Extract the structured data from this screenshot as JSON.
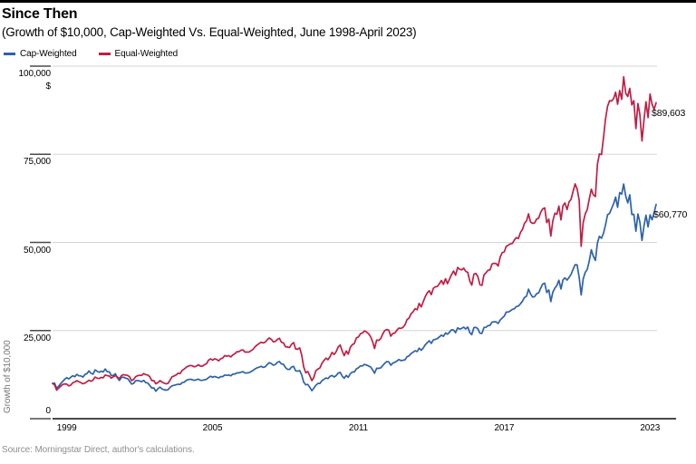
{
  "header": {
    "title": "Since Then",
    "subtitle": "(Growth of $10,000, Cap-Weighted Vs. Equal-Weighted, June 1998-April 2023)"
  },
  "footer": {
    "source": "Source: Morningstar Direct, author's calculations."
  },
  "colors": {
    "cap_weighted": "#2d62a8",
    "equal_weighted": "#bf1e45",
    "grid": "#d6d6d6",
    "axis": "#4a4a4a"
  },
  "chart_data": {
    "type": "line",
    "title": "Since Then",
    "subtitle": "(Growth of $10,000, Cap-Weighted Vs. Equal-Weighted, June 1998-April 2023)",
    "xlabel": "",
    "ylabel": "Growth of $10,000",
    "y_unit": "$",
    "ylim": [
      0,
      100000
    ],
    "y_ticks": [
      0,
      25000,
      50000,
      75000,
      100000
    ],
    "y_tick_labels": [
      "0",
      "25,000",
      "50,000",
      "75,000",
      "100,000"
    ],
    "x_ticks": [
      1999,
      2005,
      2011,
      2017,
      2023
    ],
    "x_range": "June 1998 - April 2023",
    "grid": "horizontal",
    "legend_position": "top-left",
    "frequency": "monthly",
    "start_year_decimal": 1998.4167,
    "series": [
      {
        "name": "Cap-Weighted",
        "color": "#2d62a8",
        "end_label": "$60,770",
        "end_value": 60770,
        "values": [
          10000,
          10110,
          8660,
          9210,
          9960,
          10570,
          11180,
          11650,
          11290,
          11740,
          12190,
          11900,
          12560,
          12170,
          12130,
          11800,
          12540,
          12790,
          13540,
          12860,
          12620,
          13850,
          13440,
          13160,
          13480,
          13270,
          14090,
          13350,
          13290,
          12240,
          12300,
          12740,
          11580,
          10850,
          11690,
          11770,
          11490,
          11380,
          10670,
          9810,
          9990,
          10760,
          10850,
          10690,
          10480,
          10870,
          10220,
          10140,
          9420,
          8690,
          8740,
          7790,
          8480,
          8980,
          8450,
          8230,
          8110,
          8190,
          8860,
          9330,
          9450,
          9620,
          9800,
          9690,
          10240,
          10330,
          10870,
          11070,
          11220,
          11050,
          10880,
          11030,
          11240,
          10870,
          10910,
          11020,
          11190,
          11640,
          12040,
          11750,
          11990,
          11780,
          11560,
          11930,
          11940,
          12390,
          12280,
          12380,
          12170,
          12630,
          12640,
          12970,
          13000,
          13160,
          13340,
          12960,
          12970,
          13050,
          13360,
          13710,
          14150,
          14420,
          14630,
          14850,
          14560,
          14720,
          15370,
          15910,
          15640,
          15160,
          15380,
          15960,
          16210,
          15530,
          15420,
          14500,
          14020,
          13960,
          14640,
          14830,
          13580,
          13460,
          13660,
          12440,
          10350,
          9610,
          9710,
          8890,
          7940,
          8640,
          9460,
          9990,
          10010,
          10770,
          11160,
          11570,
          11360,
          12040,
          12270,
          11830,
          12200,
          12930,
          13140,
          12090,
          11460,
          12260,
          11710,
          12750,
          13240,
          13240,
          14120,
          14460,
          14950,
          14960,
          15400,
          15230,
          14970,
          14670,
          13870,
          12900,
          14300,
          14270,
          14410,
          15060,
          15710,
          16230,
          16130,
          15160,
          15790,
          16000,
          16360,
          16780,
          16470,
          16560,
          16710,
          17570,
          17810,
          18480,
          18840,
          19280,
          19020,
          19990,
          19410,
          20020,
          20940,
          21580,
          22120,
          21360,
          22340,
          22520,
          22690,
          23220,
          23700,
          23370,
          24310,
          23970,
          24550,
          25210,
          25150,
          24390,
          25790,
          25390,
          25630,
          25960,
          25460,
          25990,
          24420,
          23820,
          25830,
          25900,
          25490,
          24230,
          24190,
          25830,
          25930,
          26400,
          26460,
          27440,
          27480,
          27480,
          26980,
          27980,
          28530,
          29070,
          30220,
          30260,
          30570,
          31000,
          31190,
          31830,
          31930,
          32590,
          33350,
          34370,
          34750,
          36740,
          35390,
          34490,
          34620,
          35450,
          35670,
          37000,
          38200,
          38420,
          35790,
          36520,
          33220,
          35890,
          37040,
          37760,
          39290,
          36790,
          39380,
          39950,
          39310,
          40050,
          40920,
          42400,
          43680,
          43660,
          40070,
          35120,
          39620,
          41510,
          42330,
          44720,
          47930,
          46110,
          44880,
          49790,
          51710,
          51190,
          52600,
          54900,
          57830,
          58230,
          59590,
          61010,
          62860,
          59940,
          64140,
          63700,
          66550,
          63110,
          61220,
          63490,
          57950,
          57960,
          53170,
          58080,
          55710,
          50570,
          54670,
          57720,
          54390,
          57810,
          56400,
          58470,
          60770
        ]
      },
      {
        "name": "Equal-Weighted",
        "color": "#bf1e45",
        "end_label": "$89,603",
        "end_value": 89603,
        "values": [
          10000,
          9600,
          8100,
          8700,
          9200,
          9700,
          9860,
          9800,
          9300,
          9500,
          10200,
          10400,
          10800,
          10500,
          10200,
          9900,
          10100,
          10500,
          10900,
          10600,
          11000,
          11800,
          11500,
          11400,
          11700,
          11600,
          12400,
          12200,
          12100,
          11500,
          11900,
          12200,
          11800,
          11400,
          12200,
          12500,
          12400,
          12300,
          11900,
          10800,
          11100,
          11900,
          12200,
          12300,
          12300,
          12800,
          12500,
          12400,
          11900,
          10800,
          10800,
          9900,
          10200,
          10800,
          10400,
          10100,
          9900,
          10000,
          10900,
          11900,
          12100,
          12400,
          12900,
          12800,
          13700,
          14100,
          14600,
          14900,
          15100,
          15000,
          14700,
          14900,
          15300,
          14900,
          14900,
          15300,
          15600,
          16600,
          17000,
          16600,
          17000,
          16800,
          16400,
          17000,
          17200,
          17900,
          17700,
          17900,
          17500,
          18100,
          18400,
          19000,
          19000,
          19400,
          19500,
          18900,
          18900,
          18900,
          19300,
          19700,
          20400,
          20900,
          21300,
          21700,
          21500,
          21700,
          22400,
          22900,
          22500,
          21800,
          21900,
          22500,
          22800,
          21700,
          21500,
          20400,
          20300,
          20200,
          21100,
          21600,
          19800,
          19700,
          20100,
          18100,
          14700,
          13000,
          13400,
          12200,
          10800,
          11700,
          13600,
          14100,
          14400,
          15700,
          16500,
          17200,
          16700,
          17600,
          18800,
          18200,
          19000,
          20300,
          20900,
          19200,
          17900,
          19200,
          18300,
          20200,
          21000,
          21300,
          22900,
          23200,
          24100,
          24300,
          24900,
          24600,
          24100,
          23300,
          21900,
          19900,
          22300,
          22200,
          22700,
          24000,
          25000,
          25300,
          25100,
          23400,
          24200,
          24300,
          25100,
          25700,
          25600,
          25900,
          26600,
          28100,
          28500,
          29800,
          30300,
          31200,
          30900,
          32700,
          31700,
          33200,
          34600,
          35700,
          36300,
          35200,
          37000,
          37400,
          37500,
          38300,
          39200,
          38100,
          39700,
          38300,
          39600,
          40900,
          41900,
          40700,
          42900,
          42400,
          42200,
          42700,
          41800,
          41500,
          39000,
          37900,
          41000,
          41200,
          40300,
          38000,
          37800,
          40800,
          41400,
          42100,
          42200,
          43900,
          44100,
          44000,
          43300,
          45800,
          47100,
          47300,
          48900,
          49200,
          49600,
          49700,
          50700,
          51400,
          51100,
          52800,
          53700,
          55400,
          56100,
          58100,
          55800,
          55400,
          55500,
          56600,
          56900,
          58500,
          59500,
          59800,
          55600,
          56600,
          51800,
          56100,
          58300,
          58000,
          60300,
          56400,
          60400,
          61200,
          59300,
          61500,
          62200,
          64500,
          66600,
          65200,
          62000,
          48900,
          55600,
          58100,
          59300,
          62300,
          65100,
          63500,
          63000,
          72100,
          75100,
          74900,
          79600,
          84900,
          88600,
          90200,
          90100,
          90800,
          92600,
          89200,
          93100,
          90600,
          97000,
          92300,
          91400,
          93700,
          89000,
          90200,
          82300,
          89400,
          86200,
          78800,
          84700,
          89900,
          85400,
          92100,
          89200,
          87700,
          89603
        ]
      }
    ]
  }
}
